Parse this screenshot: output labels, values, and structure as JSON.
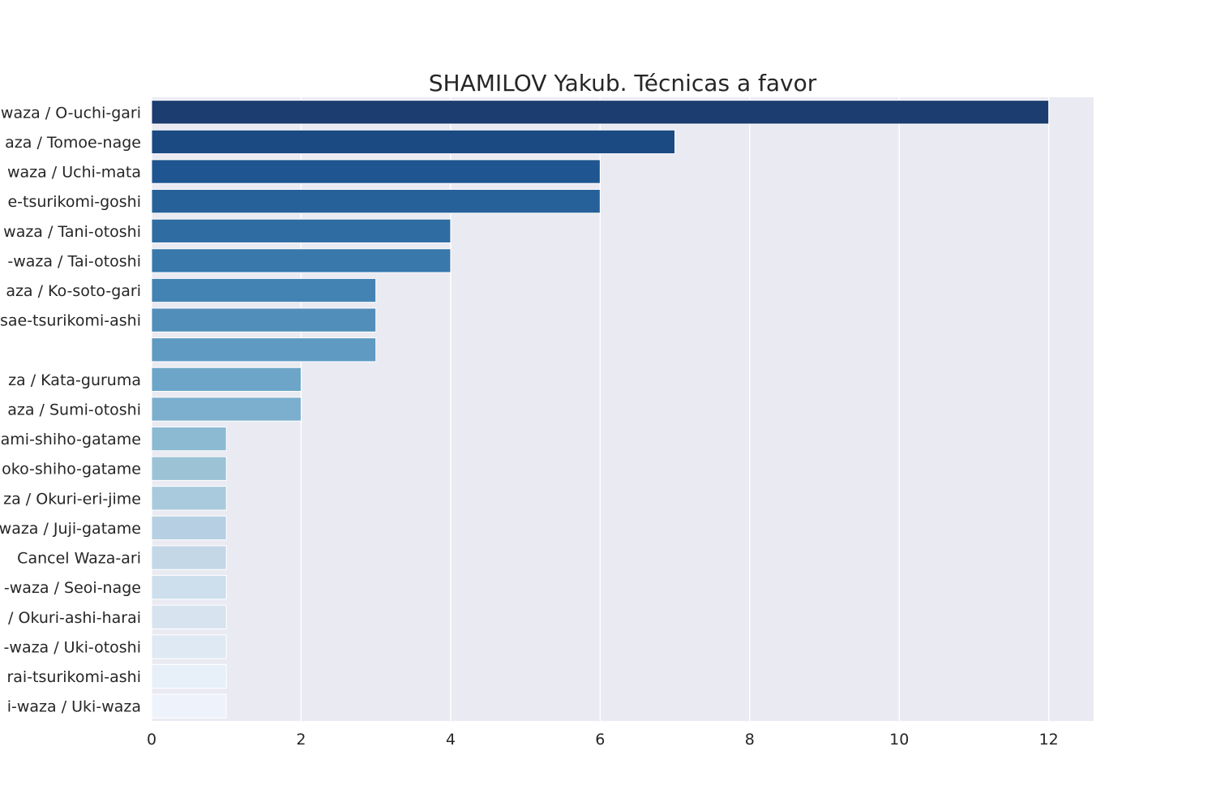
{
  "chart_data": {
    "type": "bar",
    "orientation": "horizontal",
    "title": "SHAMILOV Yakub. Técnicas a favor",
    "xlabel": "",
    "ylabel": "",
    "xlim": [
      0,
      12.6
    ],
    "xticks": [
      "0",
      "2",
      "4",
      "6",
      "8",
      "10",
      "12"
    ],
    "grid": true,
    "categories": [
      "waza / O-uchi-gari",
      "aza / Tomoe-nage",
      "waza / Uchi-mata",
      "e-tsurikomi-goshi",
      "waza / Tani-otoshi",
      "-waza / Tai-otoshi",
      "aza / Ko-soto-gari",
      "sae-tsurikomi-ashi",
      "",
      "za / Kata-guruma",
      "aza / Sumi-otoshi",
      "ami-shiho-gatame",
      "oko-shiho-gatame",
      "za / Okuri-eri-jime",
      "waza / Juji-gatame",
      "Cancel Waza-ari",
      "-waza / Seoi-nage",
      "/ Okuri-ashi-harai",
      "-waza / Uki-otoshi",
      "rai-tsurikomi-ashi",
      "i-waza / Uki-waza"
    ],
    "values": [
      12,
      7,
      6,
      6,
      4,
      4,
      3,
      3,
      3,
      2,
      2,
      1,
      1,
      1,
      1,
      1,
      1,
      1,
      1,
      1,
      1
    ],
    "colors": [
      "#1b3d6f",
      "#1b4a83",
      "#1f5590",
      "#27619a",
      "#2f6ca1",
      "#3878ab",
      "#4383b3",
      "#518eb9",
      "#5e9ac1",
      "#6ca5c7",
      "#7bafcd",
      "#8bbad2",
      "#9bc3d5",
      "#a8cadc",
      "#b6cfe3",
      "#c3d7e7",
      "#cddfec",
      "#d7e4f0",
      "#dfe9f3",
      "#e7eff8",
      "#eef3fb"
    ],
    "plot_background": "#eaeaf2",
    "grid_color": "#ffffff",
    "text_color": "#262626"
  }
}
